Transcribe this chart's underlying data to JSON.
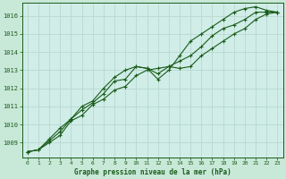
{
  "title": "Graphe pression niveau de la mer (hPa)",
  "background_color": "#c8e8d8",
  "plot_bg_color": "#d0ede8",
  "grid_color": "#b8d8d0",
  "line_color": "#1a5c1a",
  "xmin": 0,
  "xmax": 23,
  "ymin": 1008.2,
  "ymax": 1016.7,
  "yticks": [
    1009,
    1010,
    1011,
    1012,
    1013,
    1014,
    1015,
    1016
  ],
  "xticks": [
    0,
    1,
    2,
    3,
    4,
    5,
    6,
    7,
    8,
    9,
    10,
    11,
    12,
    13,
    14,
    15,
    16,
    17,
    18,
    19,
    20,
    21,
    22,
    23
  ],
  "series1": [
    1008.5,
    1008.6,
    1009.0,
    1009.4,
    1010.2,
    1010.5,
    1011.1,
    1011.4,
    1011.9,
    1012.1,
    1012.7,
    1013.0,
    1013.1,
    1013.2,
    1013.1,
    1013.2,
    1013.8,
    1014.2,
    1014.6,
    1015.0,
    1015.3,
    1015.8,
    1016.1,
    1016.2
  ],
  "series2": [
    1008.5,
    1008.6,
    1009.1,
    1009.6,
    1010.3,
    1010.8,
    1011.2,
    1011.7,
    1012.4,
    1012.5,
    1013.2,
    1013.1,
    1012.8,
    1013.2,
    1013.5,
    1013.8,
    1014.3,
    1014.9,
    1015.3,
    1015.5,
    1015.8,
    1016.2,
    1016.2,
    1016.2
  ],
  "series3": [
    1008.5,
    1008.6,
    1009.2,
    1009.8,
    1010.3,
    1011.0,
    1011.3,
    1012.0,
    1012.6,
    1013.0,
    1013.2,
    1013.1,
    1012.5,
    1013.0,
    1013.8,
    1014.6,
    1015.0,
    1015.4,
    1015.8,
    1016.2,
    1016.4,
    1016.5,
    1016.3,
    1016.2
  ]
}
